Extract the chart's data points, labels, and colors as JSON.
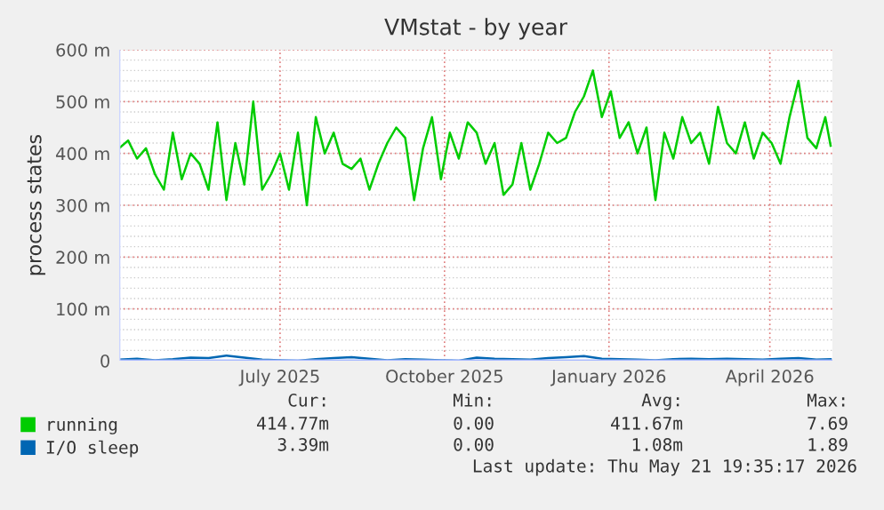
{
  "chart_data": {
    "type": "line",
    "title": "VMstat - by year",
    "ylabel": "process states",
    "xlim": [
      "2025-04-17",
      "2026-05-21"
    ],
    "ylim": [
      0,
      600
    ],
    "xticks": [
      {
        "value": "2025-07-16",
        "label": "July 2025"
      },
      {
        "value": "2025-10-16",
        "label": "October 2025"
      },
      {
        "value": "2026-01-16",
        "label": "January 2026"
      },
      {
        "value": "2026-04-16",
        "label": "April 2026"
      }
    ],
    "yticks": [
      0,
      {
        "value": 100,
        "label": "100 m"
      },
      {
        "value": 200,
        "label": "200 m"
      },
      {
        "value": 300,
        "label": "300 m"
      },
      {
        "value": 400,
        "label": "400 m"
      },
      {
        "value": 500,
        "label": "500 m"
      },
      {
        "value": 600,
        "label": "600 m"
      }
    ],
    "grid": true,
    "legend": "bottom left",
    "series": [
      {
        "name": "running",
        "color": "#00cc00",
        "x": [
          "2025-04-17",
          "2025-04-22",
          "2025-04-27",
          "2025-05-02",
          "2025-05-07",
          "2025-05-12",
          "2025-05-17",
          "2025-05-22",
          "2025-05-27",
          "2025-06-01",
          "2025-06-06",
          "2025-06-11",
          "2025-06-16",
          "2025-06-21",
          "2025-06-26",
          "2025-07-01",
          "2025-07-06",
          "2025-07-11",
          "2025-07-16",
          "2025-07-21",
          "2025-07-26",
          "2025-07-31",
          "2025-08-05",
          "2025-08-10",
          "2025-08-15",
          "2025-08-20",
          "2025-08-25",
          "2025-08-30",
          "2025-09-04",
          "2025-09-09",
          "2025-09-14",
          "2025-09-19",
          "2025-09-24",
          "2025-09-29",
          "2025-10-04",
          "2025-10-09",
          "2025-10-14",
          "2025-10-19",
          "2025-10-24",
          "2025-10-29",
          "2025-11-03",
          "2025-11-08",
          "2025-11-13",
          "2025-11-18",
          "2025-11-23",
          "2025-11-28",
          "2025-12-03",
          "2025-12-08",
          "2025-12-13",
          "2025-12-18",
          "2025-12-23",
          "2025-12-28",
          "2026-01-02",
          "2026-01-07",
          "2026-01-12",
          "2026-01-17",
          "2026-01-22",
          "2026-01-27",
          "2026-02-01",
          "2026-02-06",
          "2026-02-11",
          "2026-02-16",
          "2026-02-21",
          "2026-02-26",
          "2026-03-03",
          "2026-03-08",
          "2026-03-13",
          "2026-03-18",
          "2026-03-23",
          "2026-03-28",
          "2026-04-02",
          "2026-04-07",
          "2026-04-12",
          "2026-04-17",
          "2026-04-22",
          "2026-04-27",
          "2026-05-02",
          "2026-05-07",
          "2026-05-12",
          "2026-05-17",
          "2026-05-20"
        ],
        "values": [
          410,
          425,
          390,
          410,
          360,
          330,
          440,
          350,
          400,
          380,
          330,
          460,
          310,
          420,
          340,
          500,
          330,
          360,
          400,
          330,
          440,
          300,
          470,
          400,
          440,
          380,
          370,
          390,
          330,
          380,
          420,
          450,
          430,
          310,
          410,
          470,
          350,
          440,
          390,
          460,
          440,
          380,
          420,
          320,
          340,
          420,
          330,
          380,
          440,
          420,
          430,
          480,
          510,
          560,
          470,
          520,
          430,
          460,
          400,
          450,
          310,
          440,
          390,
          470,
          420,
          440,
          380,
          490,
          420,
          400,
          460,
          390,
          440,
          420,
          380,
          470,
          540,
          430,
          410,
          470,
          415
        ]
      },
      {
        "name": "I/O sleep",
        "color": "#0066b3",
        "x": [
          "2025-04-17",
          "2025-04-27",
          "2025-05-07",
          "2025-05-17",
          "2025-05-27",
          "2025-06-06",
          "2025-06-16",
          "2025-06-26",
          "2025-07-06",
          "2025-07-16",
          "2025-07-26",
          "2025-08-05",
          "2025-08-15",
          "2025-08-25",
          "2025-09-04",
          "2025-09-14",
          "2025-09-24",
          "2025-10-04",
          "2025-10-14",
          "2025-10-24",
          "2025-11-03",
          "2025-11-13",
          "2025-11-23",
          "2025-12-03",
          "2025-12-13",
          "2025-12-23",
          "2026-01-02",
          "2026-01-12",
          "2026-01-22",
          "2026-02-01",
          "2026-02-11",
          "2026-02-21",
          "2026-03-03",
          "2026-03-13",
          "2026-03-23",
          "2026-04-02",
          "2026-04-12",
          "2026-04-22",
          "2026-05-02",
          "2026-05-12",
          "2026-05-20"
        ],
        "values": [
          2,
          4,
          1,
          3,
          6,
          5,
          10,
          6,
          2,
          1,
          0,
          3,
          5,
          7,
          4,
          1,
          3,
          2,
          1,
          0,
          6,
          4,
          3,
          2,
          5,
          7,
          9,
          4,
          3,
          2,
          1,
          3,
          4,
          3,
          4,
          3,
          2,
          4,
          5,
          2,
          3
        ]
      }
    ],
    "annotations": [
      "Cur:",
      "Min:",
      "Avg:",
      "Max:",
      "414.77m",
      "0.00",
      "411.67m",
      "7.69",
      "3.39m",
      "0.00",
      "1.08m",
      "1.89",
      "Last update: Thu May 21 19:35:17 2026"
    ]
  }
}
